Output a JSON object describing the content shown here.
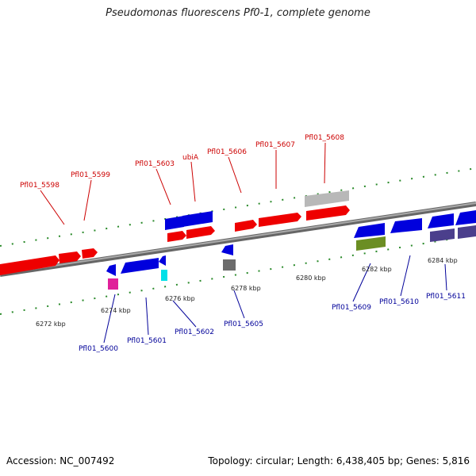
{
  "title": "Pseudomonas fluorescens Pf0-1, complete genome",
  "footer": {
    "accession": "Accession: NC_007492",
    "summary": "Topology: circular; Length: 6,438,405 bp; Genes: 5,816"
  },
  "ruler_labels": [
    "6272 kbp",
    "6274 kbp",
    "6276 kbp",
    "6278 kbp",
    "6280 kbp",
    "6282 kbp",
    "6284 kbp"
  ],
  "top_labels": [
    "Pfl01_5598",
    "Pfl01_5599",
    "Pfl01_5603",
    "ubiA",
    "Pfl01_5606",
    "Pfl01_5607",
    "Pfl01_5608"
  ],
  "bottom_labels": [
    "Pfl01_5600",
    "Pfl01_5601",
    "Pfl01_5602",
    "Pfl01_5605",
    "Pfl01_5609",
    "Pfl01_5610",
    "Pfl01_5611"
  ],
  "colors": {
    "forward_gene": "#ee0000",
    "reverse_gene": "#0000dd",
    "backbone": "#888888",
    "ticks": "#2a8a2a",
    "top_label": "#cc0000",
    "bottom_label": "#000099"
  }
}
